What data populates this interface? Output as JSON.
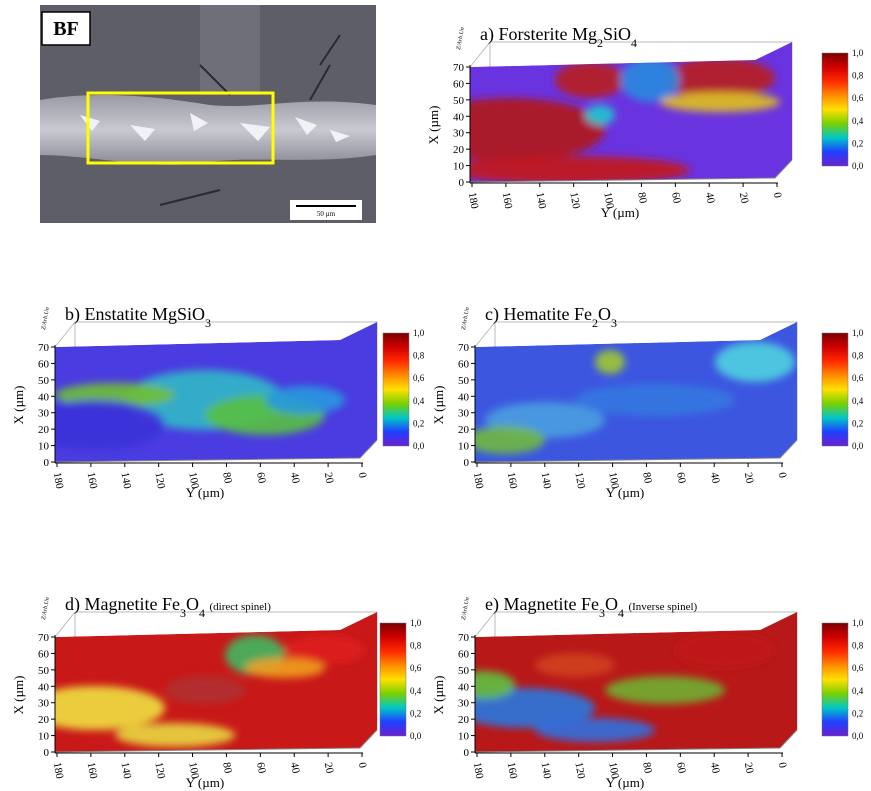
{
  "micrograph": {
    "label": "BF",
    "scale_bar": "50 µm"
  },
  "axes": {
    "x_label": "X (µm)",
    "x_ticks": [
      "0",
      "10",
      "20",
      "30",
      "40",
      "50",
      "60",
      "70"
    ],
    "y_label": "Y (µm)",
    "y_ticks": [
      "180",
      "160",
      "140",
      "120",
      "100",
      "80",
      "60",
      "40",
      "20",
      "0"
    ],
    "z_label": "Z/Arb.Un",
    "colorbar_ticks": [
      "1,0",
      "0,8",
      "0,6",
      "0,4",
      "0,2",
      "0,0"
    ]
  },
  "panels": [
    {
      "title": "a) Forsterite",
      "formula": [
        "Mg",
        "2",
        "SiO",
        "4"
      ]
    },
    {
      "title": "b) Enstatite",
      "formula": [
        "MgSiO",
        "3"
      ]
    },
    {
      "title": "c) Hematite",
      "formula": [
        "Fe",
        "2",
        "O",
        "3"
      ]
    },
    {
      "title": "d) Magnetite",
      "formula": [
        "Fe",
        "3",
        "O",
        "4"
      ],
      "variant": "(direct spinel)"
    },
    {
      "title": "e) Magnetite",
      "formula": [
        "Fe",
        "3",
        "O",
        "4"
      ],
      "variant": "(Inverse spinel)"
    }
  ]
}
